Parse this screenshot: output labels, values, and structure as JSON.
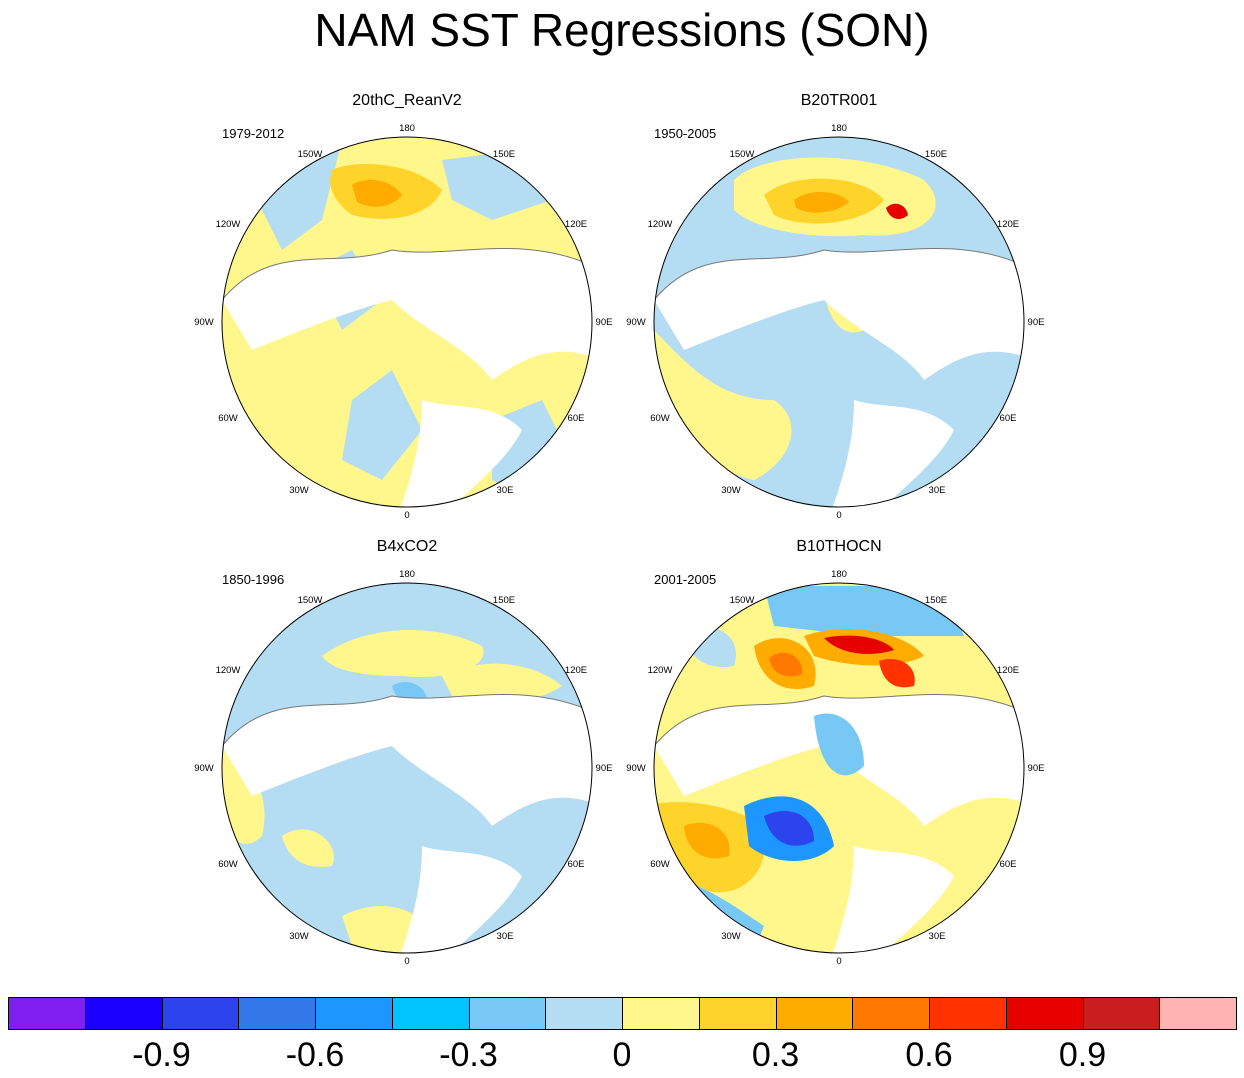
{
  "title": "NAM SST Regressions (SON)",
  "longitude_labels": [
    "180",
    "150E",
    "120E",
    "90E",
    "60E",
    "30E",
    "0",
    "30W",
    "60W",
    "90W",
    "120W",
    "150W"
  ],
  "panels": [
    {
      "title": "20thC_ReanV2",
      "period": "1979-2012"
    },
    {
      "title": "B20TR001",
      "period": "1950-2005"
    },
    {
      "title": "B4xCO2",
      "period": "1850-1996"
    },
    {
      "title": "B10THOCN",
      "period": "2001-2005"
    }
  ],
  "colorbar": {
    "colors": [
      "#8020f0",
      "#1a00ff",
      "#2c44ee",
      "#3377e8",
      "#1e96ff",
      "#00c3ff",
      "#78c8f5",
      "#b4dcf2",
      "#fff78c",
      "#ffd42a",
      "#ffab00",
      "#ff7800",
      "#ff3200",
      "#e60000",
      "#c81e1e",
      "#ffb4b4"
    ],
    "tick_labels": [
      "-0.9",
      "-0.6",
      "-0.3",
      "0",
      "0.3",
      "0.6",
      "0.9"
    ]
  },
  "palette": {
    "land": "#ffffff",
    "coast": "#777777",
    "neg_weak": "#b4dcf2",
    "pos_weak": "#fff78c",
    "pos_mod": "#ffd42a",
    "pos_strong": "#ffab00",
    "red": "#e60000",
    "blue": "#2c44ee"
  }
}
